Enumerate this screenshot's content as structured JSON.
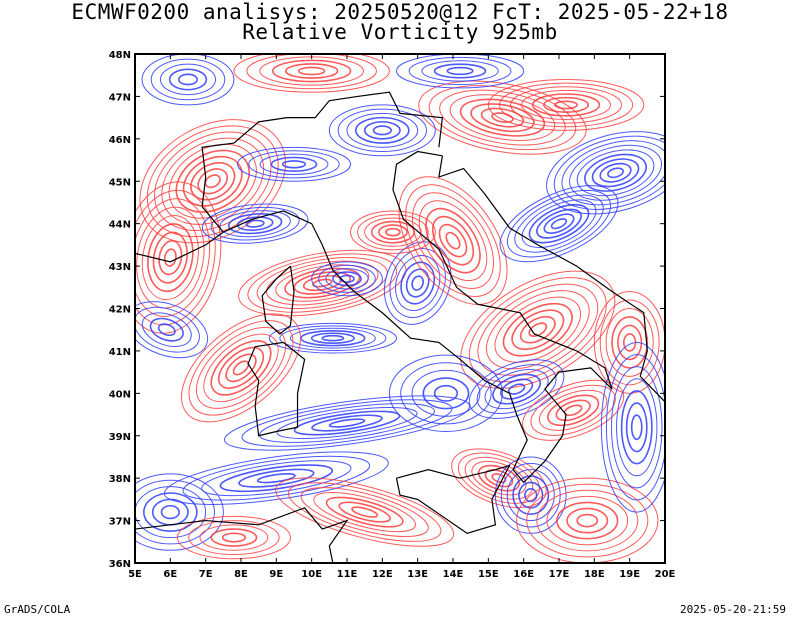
{
  "title_line1": "ECMWF0200 analisys: 20250520@12 FcT: 2025-05-22+18",
  "title_line2": "Relative Vorticity 925mb",
  "footer_left": "GrADS/COLA",
  "footer_right": "2025-05-20-21:59",
  "map": {
    "lon_range": [
      5,
      20
    ],
    "lat_range": [
      36,
      48
    ],
    "lon_ticks": [
      "5E",
      "6E",
      "7E",
      "8E",
      "9E",
      "10E",
      "11E",
      "12E",
      "13E",
      "14E",
      "15E",
      "16E",
      "17E",
      "18E",
      "19E",
      "20E"
    ],
    "lat_ticks": [
      "36N",
      "37N",
      "38N",
      "39N",
      "40N",
      "41N",
      "42N",
      "43N",
      "44N",
      "45N",
      "46N",
      "47N",
      "48N"
    ],
    "positive_color": "#ff3c3c",
    "negative_color": "#2b3cff",
    "coast_color": "#000000"
  }
}
